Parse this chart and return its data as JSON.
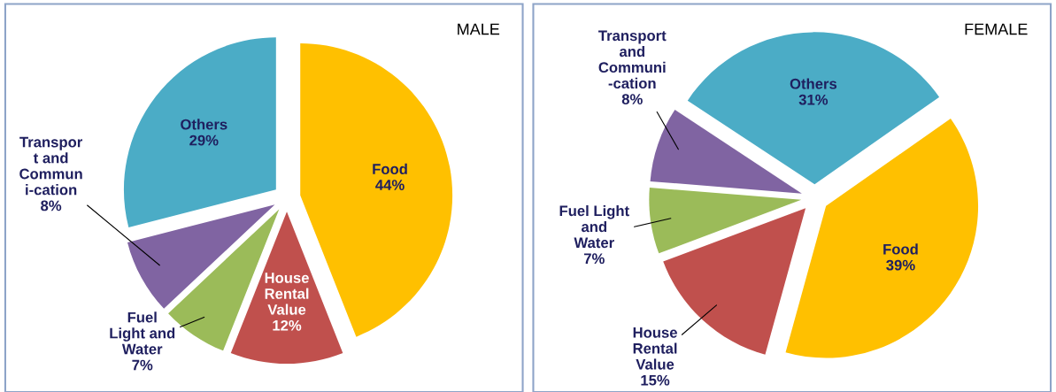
{
  "chart_data": [
    {
      "type": "pie",
      "title": "MALE",
      "categories": [
        "Food",
        "House\nRental\nValue",
        "Fuel\nLight and\nWater",
        "Transpor\nt and\nCommun\ni-cation",
        "Others"
      ],
      "values": [
        44,
        12,
        7,
        8,
        29
      ],
      "value_labels": [
        "44%",
        "12%",
        "7%",
        "8%",
        "29%"
      ],
      "colors": [
        "#ffc000",
        "#c0504d",
        "#9bbb59",
        "#8064a2",
        "#4bacc6"
      ]
    },
    {
      "type": "pie",
      "title": "FEMALE",
      "categories": [
        "Food",
        "House\nRental\nValue",
        "Fuel Light\nand\nWater",
        "Transport\nand\nCommuni\n-cation",
        "Others"
      ],
      "values": [
        39,
        15,
        7,
        8,
        31
      ],
      "value_labels": [
        "39%",
        "15%",
        "7%",
        "8%",
        "31%"
      ],
      "colors": [
        "#ffc000",
        "#c0504d",
        "#9bbb59",
        "#8064a2",
        "#4bacc6"
      ]
    }
  ]
}
